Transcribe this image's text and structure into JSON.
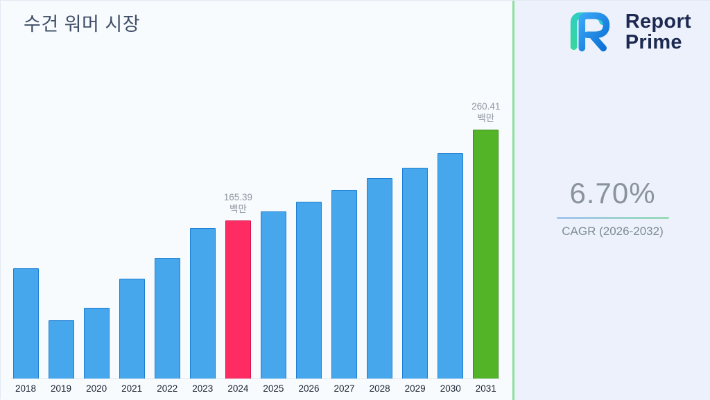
{
  "chart_data": {
    "type": "bar",
    "title": "수건 워머 시장",
    "categories": [
      "2018",
      "2019",
      "2020",
      "2021",
      "2022",
      "2023",
      "2024",
      "2025",
      "2026",
      "2027",
      "2028",
      "2029",
      "2030",
      "2031"
    ],
    "values": [
      115.7,
      61.5,
      74.5,
      104.9,
      126.6,
      157.7,
      165.39,
      175.1,
      185.2,
      197.5,
      209.8,
      220.6,
      235.8,
      260.41
    ],
    "unit": "백만",
    "xlabel": "",
    "ylabel": "",
    "ylim": [
      0,
      280
    ],
    "grid": false,
    "legend": "none",
    "annotations": [
      {
        "category": "2024",
        "lines": [
          "165.39",
          "백만"
        ]
      },
      {
        "category": "2031",
        "lines": [
          "260.41",
          "백만"
        ]
      }
    ],
    "bar_style": {
      "fill": "#47a7ec",
      "border": "#1b7ed2"
    },
    "highlight_styles": {
      "2024": {
        "fill": "#fe2c62",
        "border": "#d11348"
      },
      "2031": {
        "fill": "#54b427",
        "border": "#3a8c14"
      }
    }
  },
  "right_panel": {
    "logo_line1": "Report",
    "logo_line2": "Prime",
    "cagr_value": "6.70%",
    "cagr_label": "CAGR (2026-2032)"
  },
  "colors": {
    "divider_green": "#8ce09c",
    "title_text": "#3f4e66",
    "annotation_text": "#8e97a1",
    "cagr_text": "#8a929c",
    "logo_navy": "#1d2950"
  }
}
